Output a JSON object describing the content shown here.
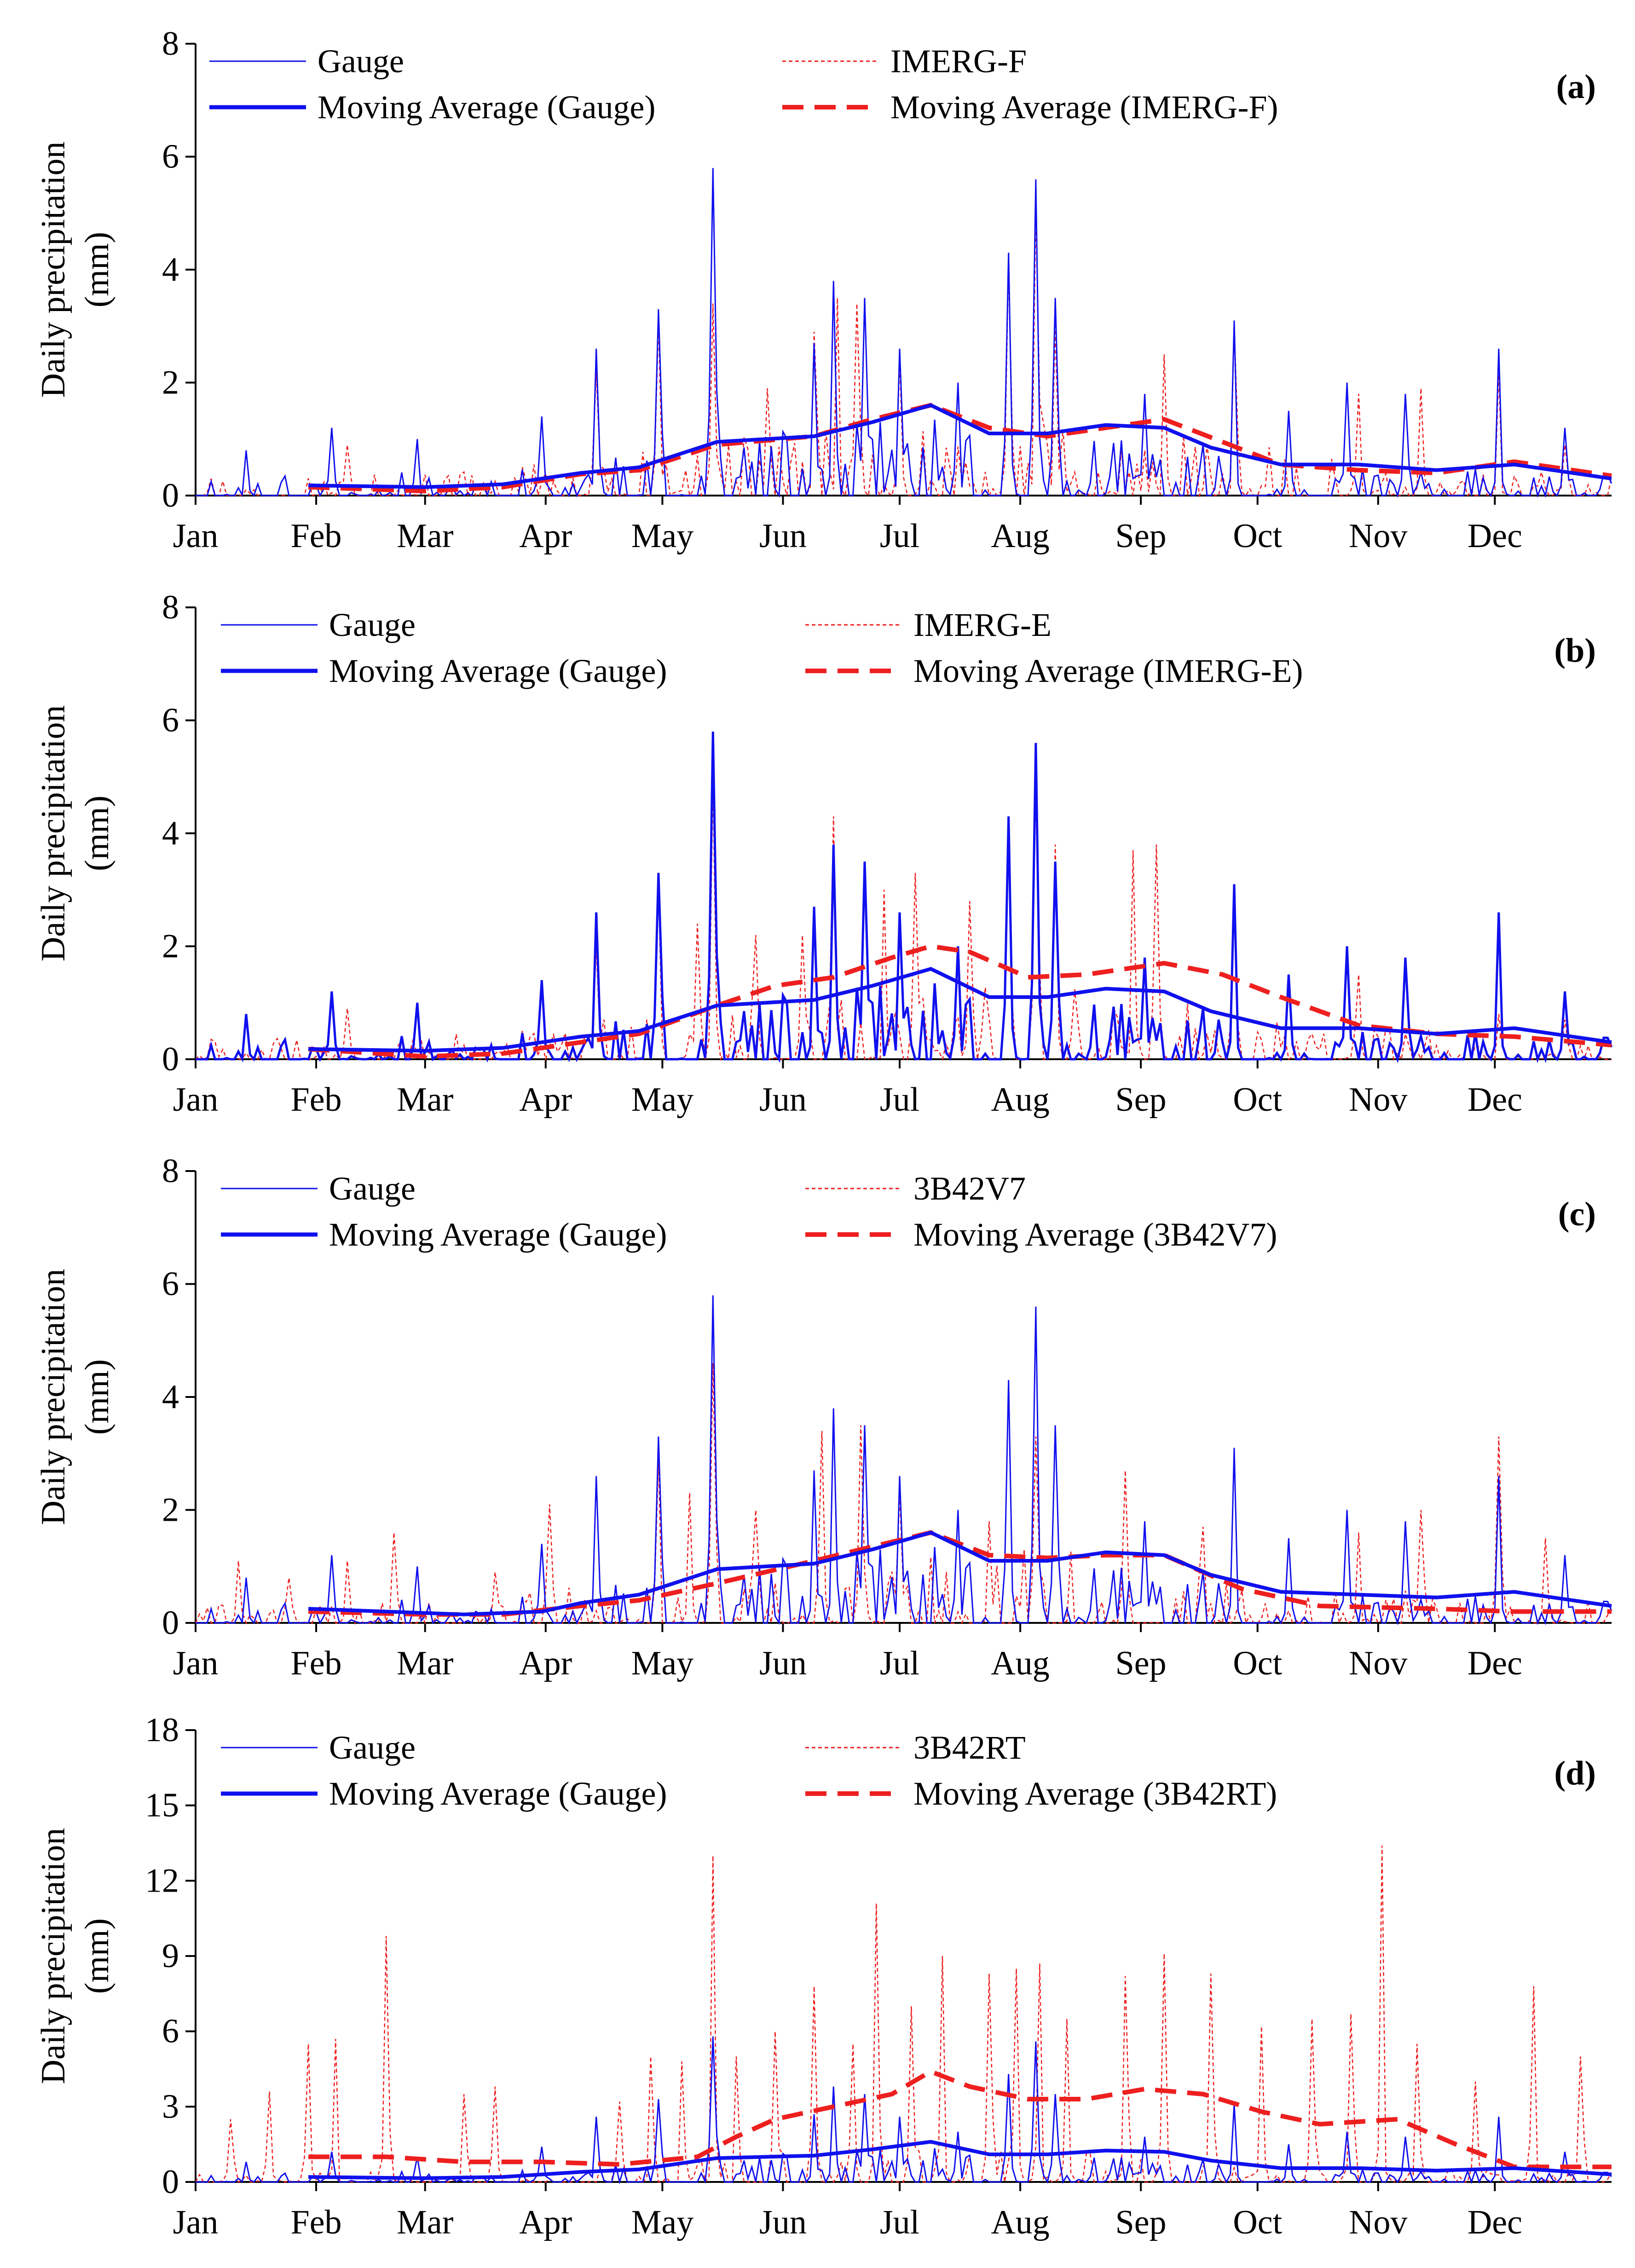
{
  "figure": {
    "ylabel_line1": "Daily precipitation",
    "ylabel_line2": "(mm)",
    "months": [
      "Jan",
      "Feb",
      "Mar",
      "Apr",
      "May",
      "Jun",
      "Jul",
      "Aug",
      "Sep",
      "Oct",
      "Nov",
      "Dec"
    ],
    "colors": {
      "gauge": "#1010ee",
      "product": "#ee1f1f",
      "axis": "#000000"
    }
  },
  "chart_data": [
    {
      "type": "line",
      "panel": "(a)",
      "xlabel": "",
      "ylabel": "Daily precipitation (mm)",
      "ylim": [
        0,
        8
      ],
      "yticks": [
        0,
        2,
        4,
        6,
        8
      ],
      "xlim": [
        1,
        365
      ],
      "legend": {
        "gauge": "Gauge",
        "product": "IMERG-F",
        "gauge_ma": "Moving Average (Gauge)",
        "product_ma": "Moving Average (IMERG-F)"
      },
      "peaks_gauge": [
        [
          14,
          0.8
        ],
        [
          36,
          1.2
        ],
        [
          58,
          1.0
        ],
        [
          90,
          1.4
        ],
        [
          104,
          2.6
        ],
        [
          120,
          3.3
        ],
        [
          134,
          5.8
        ],
        [
          160,
          2.7
        ],
        [
          165,
          3.8
        ],
        [
          173,
          3.5
        ],
        [
          182,
          2.6
        ],
        [
          197,
          2.0
        ],
        [
          210,
          4.3
        ],
        [
          217,
          5.6
        ],
        [
          222,
          3.5
        ],
        [
          245,
          1.8
        ],
        [
          268,
          3.1
        ],
        [
          282,
          1.5
        ],
        [
          297,
          2.0
        ],
        [
          312,
          1.8
        ],
        [
          336,
          2.6
        ],
        [
          353,
          1.2
        ]
      ],
      "peaks_product": [
        [
          5,
          0.3
        ],
        [
          40,
          0.9
        ],
        [
          85,
          0.5
        ],
        [
          104,
          2.2
        ],
        [
          120,
          3.1
        ],
        [
          134,
          3.4
        ],
        [
          148,
          1.9
        ],
        [
          160,
          2.9
        ],
        [
          166,
          3.5
        ],
        [
          171,
          3.4
        ],
        [
          182,
          2.4
        ],
        [
          210,
          4.1
        ],
        [
          217,
          5.1
        ],
        [
          222,
          3.0
        ],
        [
          250,
          2.5
        ],
        [
          268,
          3.0
        ],
        [
          300,
          1.8
        ],
        [
          316,
          1.9
        ],
        [
          336,
          2.2
        ],
        [
          353,
          0.9
        ]
      ],
      "ma_gauge": [
        [
          30,
          0.18
        ],
        [
          60,
          0.15
        ],
        [
          80,
          0.2
        ],
        [
          100,
          0.4
        ],
        [
          115,
          0.5
        ],
        [
          135,
          0.95
        ],
        [
          160,
          1.05
        ],
        [
          175,
          1.3
        ],
        [
          190,
          1.6
        ],
        [
          205,
          1.1
        ],
        [
          220,
          1.1
        ],
        [
          235,
          1.25
        ],
        [
          250,
          1.2
        ],
        [
          262,
          0.85
        ],
        [
          280,
          0.55
        ],
        [
          300,
          0.55
        ],
        [
          320,
          0.45
        ],
        [
          340,
          0.55
        ],
        [
          365,
          0.3
        ]
      ],
      "ma_product": [
        [
          30,
          0.15
        ],
        [
          60,
          0.08
        ],
        [
          80,
          0.15
        ],
        [
          100,
          0.38
        ],
        [
          115,
          0.45
        ],
        [
          135,
          0.9
        ],
        [
          160,
          1.05
        ],
        [
          175,
          1.35
        ],
        [
          190,
          1.6
        ],
        [
          205,
          1.2
        ],
        [
          220,
          1.05
        ],
        [
          235,
          1.2
        ],
        [
          250,
          1.35
        ],
        [
          265,
          0.95
        ],
        [
          280,
          0.55
        ],
        [
          300,
          0.45
        ],
        [
          320,
          0.4
        ],
        [
          340,
          0.6
        ],
        [
          365,
          0.35
        ]
      ]
    },
    {
      "type": "line",
      "panel": "(b)",
      "xlabel": "",
      "ylabel": "Daily precipitation (mm)",
      "ylim": [
        0,
        8
      ],
      "yticks": [
        0,
        2,
        4,
        6,
        8
      ],
      "xlim": [
        1,
        365
      ],
      "legend": {
        "gauge": "Gauge",
        "product": "IMERG-E",
        "gauge_ma": "Moving Average (Gauge)",
        "product_ma": "Moving Average (IMERG-E)"
      },
      "peaks_gauge": [
        [
          14,
          0.8
        ],
        [
          36,
          1.2
        ],
        [
          58,
          1.0
        ],
        [
          90,
          1.4
        ],
        [
          104,
          2.6
        ],
        [
          120,
          3.3
        ],
        [
          134,
          5.8
        ],
        [
          160,
          2.7
        ],
        [
          165,
          3.8
        ],
        [
          173,
          3.5
        ],
        [
          182,
          2.6
        ],
        [
          197,
          2.0
        ],
        [
          210,
          4.3
        ],
        [
          217,
          5.6
        ],
        [
          222,
          3.5
        ],
        [
          245,
          1.8
        ],
        [
          268,
          3.1
        ],
        [
          282,
          1.5
        ],
        [
          297,
          2.0
        ],
        [
          312,
          1.8
        ],
        [
          336,
          2.6
        ],
        [
          353,
          1.2
        ]
      ],
      "peaks_product": [
        [
          5,
          0.35
        ],
        [
          40,
          0.9
        ],
        [
          85,
          0.5
        ],
        [
          104,
          2.0
        ],
        [
          120,
          3.1
        ],
        [
          130,
          2.4
        ],
        [
          134,
          5.0
        ],
        [
          145,
          2.2
        ],
        [
          157,
          2.2
        ],
        [
          165,
          4.3
        ],
        [
          178,
          3.0
        ],
        [
          186,
          3.3
        ],
        [
          200,
          2.8
        ],
        [
          210,
          4.0
        ],
        [
          217,
          4.8
        ],
        [
          222,
          3.8
        ],
        [
          242,
          3.7
        ],
        [
          248,
          3.8
        ],
        [
          268,
          2.9
        ],
        [
          300,
          1.5
        ],
        [
          336,
          0.8
        ],
        [
          353,
          0.7
        ]
      ],
      "ma_gauge": [
        [
          30,
          0.18
        ],
        [
          60,
          0.15
        ],
        [
          80,
          0.2
        ],
        [
          100,
          0.4
        ],
        [
          115,
          0.5
        ],
        [
          135,
          0.95
        ],
        [
          160,
          1.05
        ],
        [
          175,
          1.3
        ],
        [
          190,
          1.6
        ],
        [
          205,
          1.1
        ],
        [
          220,
          1.1
        ],
        [
          235,
          1.25
        ],
        [
          250,
          1.2
        ],
        [
          262,
          0.85
        ],
        [
          280,
          0.55
        ],
        [
          300,
          0.55
        ],
        [
          320,
          0.45
        ],
        [
          340,
          0.55
        ],
        [
          365,
          0.3
        ]
      ],
      "ma_product": [
        [
          30,
          0.18
        ],
        [
          60,
          0.05
        ],
        [
          80,
          0.1
        ],
        [
          100,
          0.3
        ],
        [
          115,
          0.45
        ],
        [
          135,
          0.95
        ],
        [
          150,
          1.3
        ],
        [
          165,
          1.45
        ],
        [
          180,
          1.8
        ],
        [
          190,
          2.0
        ],
        [
          200,
          1.9
        ],
        [
          215,
          1.45
        ],
        [
          230,
          1.5
        ],
        [
          250,
          1.7
        ],
        [
          265,
          1.5
        ],
        [
          280,
          1.1
        ],
        [
          300,
          0.6
        ],
        [
          320,
          0.45
        ],
        [
          340,
          0.4
        ],
        [
          365,
          0.25
        ]
      ]
    },
    {
      "type": "line",
      "panel": "(c)",
      "xlabel": "",
      "ylabel": "Daily precipitation (mm)",
      "ylim": [
        0,
        8
      ],
      "yticks": [
        0,
        2,
        4,
        6,
        8
      ],
      "xlim": [
        1,
        365
      ],
      "legend": {
        "gauge": "Gauge",
        "product": "3B42V7",
        "gauge_ma": "Moving Average (Gauge)",
        "product_ma": "Moving Average (3B42V7)"
      },
      "peaks_gauge": [
        [
          14,
          0.8
        ],
        [
          36,
          1.2
        ],
        [
          58,
          1.0
        ],
        [
          90,
          1.4
        ],
        [
          104,
          2.6
        ],
        [
          120,
          3.3
        ],
        [
          134,
          5.8
        ],
        [
          160,
          2.7
        ],
        [
          165,
          3.8
        ],
        [
          173,
          3.5
        ],
        [
          182,
          2.6
        ],
        [
          197,
          2.0
        ],
        [
          210,
          4.3
        ],
        [
          217,
          5.6
        ],
        [
          222,
          3.5
        ],
        [
          245,
          1.8
        ],
        [
          268,
          3.1
        ],
        [
          282,
          1.5
        ],
        [
          297,
          2.0
        ],
        [
          312,
          1.8
        ],
        [
          336,
          2.6
        ],
        [
          353,
          1.2
        ]
      ],
      "peaks_product": [
        [
          12,
          1.1
        ],
        [
          25,
          0.8
        ],
        [
          40,
          1.1
        ],
        [
          52,
          1.6
        ],
        [
          78,
          0.9
        ],
        [
          92,
          2.1
        ],
        [
          120,
          2.9
        ],
        [
          128,
          2.3
        ],
        [
          134,
          4.6
        ],
        [
          145,
          2.0
        ],
        [
          162,
          3.4
        ],
        [
          172,
          3.5
        ],
        [
          182,
          2.3
        ],
        [
          205,
          1.8
        ],
        [
          217,
          3.3
        ],
        [
          240,
          2.7
        ],
        [
          260,
          1.7
        ],
        [
          300,
          1.6
        ],
        [
          316,
          2.0
        ],
        [
          336,
          3.3
        ],
        [
          348,
          1.5
        ]
      ],
      "ma_gauge": [
        [
          30,
          0.25
        ],
        [
          50,
          0.2
        ],
        [
          70,
          0.15
        ],
        [
          90,
          0.2
        ],
        [
          100,
          0.35
        ],
        [
          115,
          0.5
        ],
        [
          135,
          0.95
        ],
        [
          160,
          1.05
        ],
        [
          175,
          1.3
        ],
        [
          190,
          1.6
        ],
        [
          205,
          1.1
        ],
        [
          220,
          1.1
        ],
        [
          235,
          1.25
        ],
        [
          250,
          1.2
        ],
        [
          262,
          0.85
        ],
        [
          280,
          0.55
        ],
        [
          300,
          0.5
        ],
        [
          320,
          0.45
        ],
        [
          340,
          0.55
        ],
        [
          365,
          0.3
        ]
      ],
      "ma_product": [
        [
          30,
          0.2
        ],
        [
          60,
          0.15
        ],
        [
          80,
          0.15
        ],
        [
          100,
          0.3
        ],
        [
          115,
          0.4
        ],
        [
          135,
          0.7
        ],
        [
          160,
          1.1
        ],
        [
          175,
          1.35
        ],
        [
          190,
          1.6
        ],
        [
          205,
          1.2
        ],
        [
          220,
          1.15
        ],
        [
          235,
          1.2
        ],
        [
          250,
          1.2
        ],
        [
          270,
          0.6
        ],
        [
          290,
          0.3
        ],
        [
          320,
          0.25
        ],
        [
          340,
          0.2
        ],
        [
          365,
          0.2
        ]
      ]
    },
    {
      "type": "line",
      "panel": "(d)",
      "xlabel": "",
      "ylabel": "Daily precipitation (mm)",
      "ylim": [
        0,
        18
      ],
      "yticks": [
        0,
        3,
        6,
        9,
        12,
        15,
        18
      ],
      "xlim": [
        1,
        365
      ],
      "legend": {
        "gauge": "Gauge",
        "product": "3B42RT",
        "gauge_ma": "Moving Average (Gauge)",
        "product_ma": "Moving Average (3B42RT)"
      },
      "peaks_gauge": [
        [
          14,
          0.8
        ],
        [
          36,
          1.2
        ],
        [
          58,
          1.0
        ],
        [
          90,
          1.4
        ],
        [
          104,
          2.6
        ],
        [
          120,
          3.3
        ],
        [
          134,
          5.8
        ],
        [
          160,
          2.7
        ],
        [
          165,
          3.8
        ],
        [
          173,
          3.5
        ],
        [
          182,
          2.6
        ],
        [
          197,
          2.0
        ],
        [
          210,
          4.3
        ],
        [
          217,
          5.6
        ],
        [
          222,
          3.5
        ],
        [
          245,
          1.8
        ],
        [
          268,
          3.1
        ],
        [
          282,
          1.5
        ],
        [
          297,
          2.0
        ],
        [
          312,
          1.8
        ],
        [
          336,
          2.6
        ],
        [
          353,
          1.2
        ]
      ],
      "peaks_product": [
        [
          10,
          2.5
        ],
        [
          20,
          3.6
        ],
        [
          30,
          5.5
        ],
        [
          37,
          5.7
        ],
        [
          50,
          9.8
        ],
        [
          70,
          3.5
        ],
        [
          78,
          3.8
        ],
        [
          110,
          3.2
        ],
        [
          118,
          5.0
        ],
        [
          126,
          4.8
        ],
        [
          134,
          13.0
        ],
        [
          140,
          5.0
        ],
        [
          150,
          6.0
        ],
        [
          160,
          7.8
        ],
        [
          170,
          5.5
        ],
        [
          176,
          11.1
        ],
        [
          185,
          7.0
        ],
        [
          193,
          9.0
        ],
        [
          205,
          8.3
        ],
        [
          212,
          8.5
        ],
        [
          218,
          8.7
        ],
        [
          225,
          6.5
        ],
        [
          240,
          8.2
        ],
        [
          250,
          9.1
        ],
        [
          262,
          8.3
        ],
        [
          275,
          6.2
        ],
        [
          288,
          6.5
        ],
        [
          298,
          6.7
        ],
        [
          306,
          13.4
        ],
        [
          315,
          5.5
        ],
        [
          330,
          4.0
        ],
        [
          345,
          7.8
        ],
        [
          357,
          5.0
        ]
      ],
      "ma_gauge": [
        [
          30,
          0.2
        ],
        [
          60,
          0.15
        ],
        [
          80,
          0.2
        ],
        [
          100,
          0.4
        ],
        [
          115,
          0.5
        ],
        [
          135,
          0.95
        ],
        [
          160,
          1.05
        ],
        [
          175,
          1.3
        ],
        [
          190,
          1.6
        ],
        [
          205,
          1.1
        ],
        [
          220,
          1.1
        ],
        [
          235,
          1.25
        ],
        [
          250,
          1.2
        ],
        [
          262,
          0.85
        ],
        [
          280,
          0.55
        ],
        [
          300,
          0.55
        ],
        [
          320,
          0.45
        ],
        [
          340,
          0.55
        ],
        [
          365,
          0.3
        ]
      ],
      "ma_product": [
        [
          30,
          1.0
        ],
        [
          50,
          1.0
        ],
        [
          70,
          0.8
        ],
        [
          90,
          0.8
        ],
        [
          110,
          0.7
        ],
        [
          130,
          1.0
        ],
        [
          140,
          1.8
        ],
        [
          150,
          2.5
        ],
        [
          165,
          3.0
        ],
        [
          180,
          3.5
        ],
        [
          190,
          4.4
        ],
        [
          200,
          3.8
        ],
        [
          215,
          3.3
        ],
        [
          230,
          3.3
        ],
        [
          245,
          3.7
        ],
        [
          260,
          3.5
        ],
        [
          275,
          2.8
        ],
        [
          290,
          2.3
        ],
        [
          310,
          2.5
        ],
        [
          325,
          1.5
        ],
        [
          340,
          0.6
        ],
        [
          365,
          0.6
        ]
      ]
    }
  ]
}
